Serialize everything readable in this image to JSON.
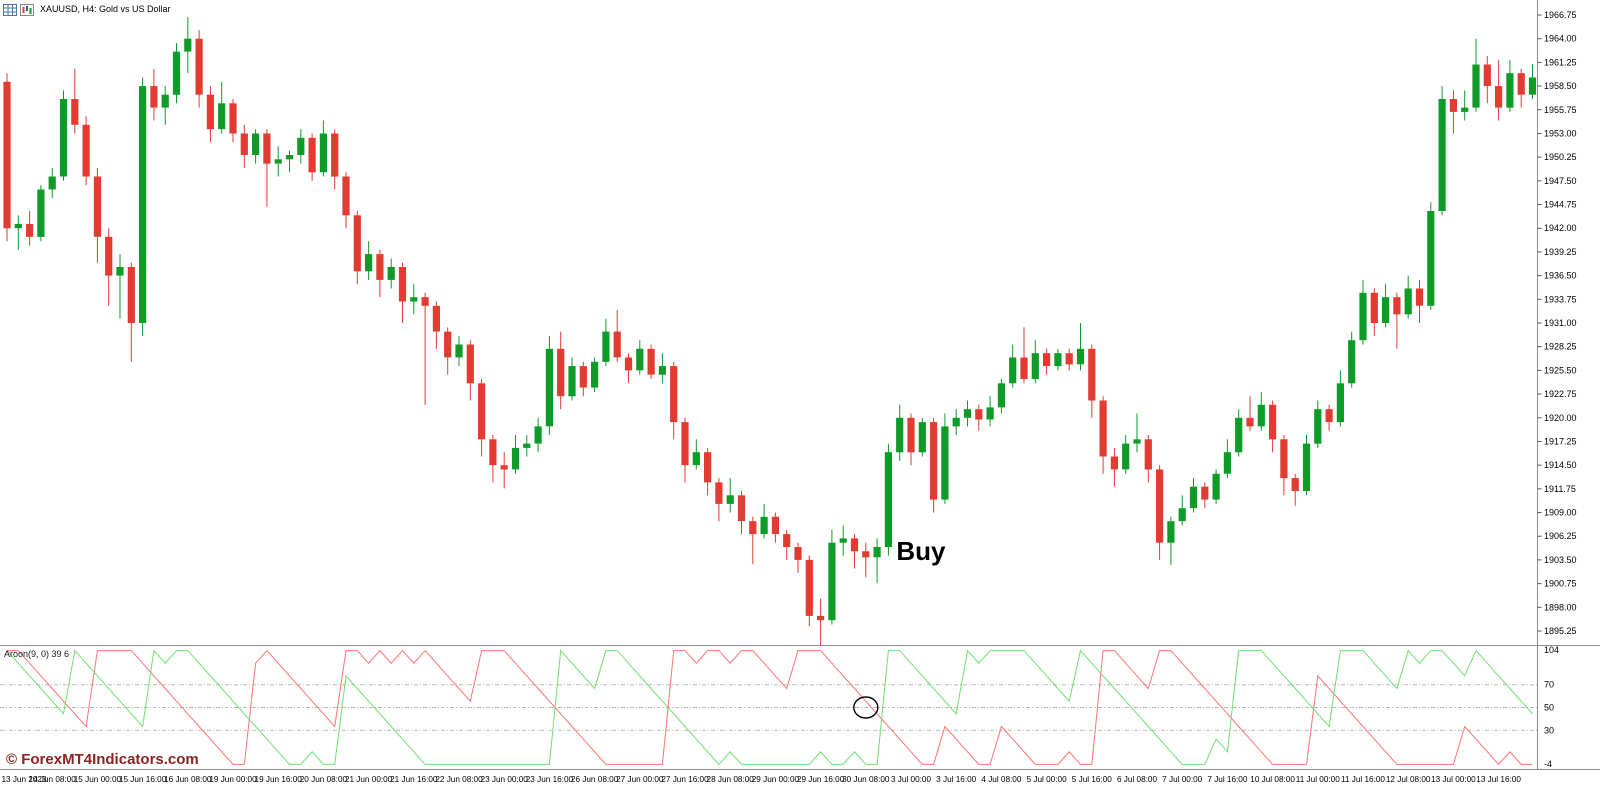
{
  "window": {
    "symbol_label": "XAUUSD, H4:  Gold vs US Dollar",
    "icons": [
      "grid-chart-icon",
      "candlestick-chart-icon"
    ]
  },
  "watermark": "© ForexMT4Indicators.com",
  "annotations": {
    "buy": {
      "text": "Buy",
      "bar_index": 78,
      "price": 1903.0
    },
    "circle": {
      "bar_index": 76,
      "value": 50
    }
  },
  "colors": {
    "bull": "#0e9b27",
    "bear": "#e23b32",
    "aroon_up": "#6ee06e",
    "aroon_down": "#ff7272",
    "level_line": "#b8b8b8",
    "separator": "#8c8c8c",
    "axis_text": "#000000",
    "background": "#ffffff"
  },
  "chart_data": {
    "type": "candlestick",
    "title": "XAUUSD, H4: Gold vs US Dollar",
    "price_axis": {
      "ticks": [
        1966.75,
        1964.0,
        1961.25,
        1958.5,
        1955.75,
        1953.0,
        1950.25,
        1947.5,
        1944.75,
        1942.0,
        1939.25,
        1936.5,
        1933.75,
        1931.0,
        1928.25,
        1925.5,
        1922.75,
        1920.0,
        1917.25,
        1914.5,
        1911.75,
        1909.0,
        1906.25,
        1903.5,
        1900.75,
        1898.0,
        1895.25
      ],
      "max": 1966.75,
      "min": 1895.25,
      "step": 2.75
    },
    "time_labels": [
      "13 Jun 2023",
      "14 Jun 08:00",
      "15 Jun 00:00",
      "15 Jun 16:00",
      "16 Jun 08:00",
      "19 Jun 00:00",
      "19 Jun 16:00",
      "20 Jun 08:00",
      "21 Jun 00:00",
      "21 Jun 16:00",
      "22 Jun 08:00",
      "23 Jun 00:00",
      "23 Jun 16:00",
      "26 Jun 08:00",
      "27 Jun 00:00",
      "27 Jun 16:00",
      "28 Jun 08:00",
      "29 Jun 00:00",
      "29 Jun 16:00",
      "30 Jun 08:00",
      "3 Jul 00:00",
      "3 Jul 16:00",
      "4 Jul 08:00",
      "5 Jul 00:00",
      "5 Jul 16:00",
      "6 Jul 08:00",
      "7 Jul 00:00",
      "7 Jul 16:00",
      "10 Jul 08:00",
      "11 Jul 00:00",
      "11 Jul 16:00",
      "12 Jul 08:00",
      "13 Jul 00:00",
      "13 Jul 16:00"
    ],
    "label_every_n_bars": 4,
    "candles_ohlc": [
      [
        1959.0,
        1960.0,
        1940.5,
        1942.0
      ],
      [
        1942.0,
        1943.5,
        1939.5,
        1942.5
      ],
      [
        1942.5,
        1944.0,
        1940.0,
        1941.0
      ],
      [
        1941.0,
        1947.0,
        1940.5,
        1946.5
      ],
      [
        1946.5,
        1949.0,
        1945.5,
        1948.0
      ],
      [
        1948.0,
        1958.0,
        1947.5,
        1957.0
      ],
      [
        1957.0,
        1960.5,
        1953.0,
        1954.0
      ],
      [
        1954.0,
        1955.0,
        1947.0,
        1948.0
      ],
      [
        1948.0,
        1949.0,
        1938.0,
        1941.0
      ],
      [
        1941.0,
        1942.0,
        1933.0,
        1936.5
      ],
      [
        1936.5,
        1939.0,
        1931.5,
        1937.5
      ],
      [
        1937.5,
        1938.0,
        1926.5,
        1931.0
      ],
      [
        1931.0,
        1959.5,
        1929.5,
        1958.5
      ],
      [
        1958.5,
        1960.5,
        1954.5,
        1956.0
      ],
      [
        1956.0,
        1958.5,
        1954.0,
        1957.5
      ],
      [
        1957.5,
        1963.5,
        1956.5,
        1962.5
      ],
      [
        1962.5,
        1966.5,
        1960.0,
        1964.0
      ],
      [
        1964.0,
        1965.0,
        1956.0,
        1957.5
      ],
      [
        1957.5,
        1958.5,
        1952.0,
        1953.5
      ],
      [
        1953.5,
        1959.0,
        1953.0,
        1956.5
      ],
      [
        1956.5,
        1957.0,
        1952.0,
        1953.0
      ],
      [
        1953.0,
        1954.0,
        1949.0,
        1950.5
      ],
      [
        1950.5,
        1953.5,
        1949.5,
        1953.0
      ],
      [
        1953.0,
        1953.5,
        1944.5,
        1949.5
      ],
      [
        1949.5,
        1951.5,
        1948.0,
        1950.0
      ],
      [
        1950.0,
        1951.0,
        1948.5,
        1950.5
      ],
      [
        1950.5,
        1953.5,
        1949.5,
        1952.5
      ],
      [
        1952.5,
        1953.0,
        1947.5,
        1948.5
      ],
      [
        1948.5,
        1954.5,
        1948.0,
        1953.0
      ],
      [
        1953.0,
        1953.5,
        1946.5,
        1948.0
      ],
      [
        1948.0,
        1948.5,
        1942.0,
        1943.5
      ],
      [
        1943.5,
        1944.0,
        1935.5,
        1937.0
      ],
      [
        1937.0,
        1940.5,
        1936.0,
        1939.0
      ],
      [
        1939.0,
        1939.5,
        1934.0,
        1936.0
      ],
      [
        1936.0,
        1938.5,
        1935.0,
        1937.5
      ],
      [
        1937.5,
        1938.0,
        1931.0,
        1933.5
      ],
      [
        1933.5,
        1935.5,
        1932.0,
        1934.0
      ],
      [
        1934.0,
        1934.5,
        1921.5,
        1933.0
      ],
      [
        1933.0,
        1933.5,
        1928.0,
        1930.0
      ],
      [
        1930.0,
        1930.5,
        1925.0,
        1927.0
      ],
      [
        1927.0,
        1929.5,
        1926.0,
        1928.5
      ],
      [
        1928.5,
        1929.0,
        1922.0,
        1924.0
      ],
      [
        1924.0,
        1924.5,
        1915.5,
        1917.5
      ],
      [
        1917.5,
        1918.0,
        1912.5,
        1914.5
      ],
      [
        1914.5,
        1916.0,
        1911.8,
        1914.0
      ],
      [
        1914.0,
        1918.0,
        1913.5,
        1916.5
      ],
      [
        1916.5,
        1918.0,
        1915.5,
        1917.0
      ],
      [
        1917.0,
        1920.0,
        1916.0,
        1919.0
      ],
      [
        1919.0,
        1929.5,
        1918.0,
        1928.0
      ],
      [
        1928.0,
        1930.0,
        1921.0,
        1922.5
      ],
      [
        1922.5,
        1927.0,
        1922.0,
        1926.0
      ],
      [
        1926.0,
        1926.5,
        1922.5,
        1923.5
      ],
      [
        1923.5,
        1927.0,
        1923.0,
        1926.5
      ],
      [
        1926.5,
        1931.5,
        1926.0,
        1930.0
      ],
      [
        1930.0,
        1932.5,
        1926.5,
        1927.0
      ],
      [
        1927.0,
        1927.5,
        1924.0,
        1925.5
      ],
      [
        1925.5,
        1929.0,
        1925.0,
        1928.0
      ],
      [
        1928.0,
        1928.5,
        1924.5,
        1925.0
      ],
      [
        1925.0,
        1927.5,
        1924.0,
        1926.0
      ],
      [
        1926.0,
        1926.5,
        1917.5,
        1919.5
      ],
      [
        1919.5,
        1920.0,
        1912.5,
        1914.5
      ],
      [
        1914.5,
        1917.5,
        1914.0,
        1916.0
      ],
      [
        1916.0,
        1916.5,
        1911.0,
        1912.5
      ],
      [
        1912.5,
        1913.0,
        1908.0,
        1910.0
      ],
      [
        1910.0,
        1913.0,
        1909.0,
        1911.0
      ],
      [
        1911.0,
        1911.5,
        1906.5,
        1908.0
      ],
      [
        1908.0,
        1908.5,
        1903.0,
        1906.5
      ],
      [
        1906.5,
        1910.0,
        1906.0,
        1908.5
      ],
      [
        1908.5,
        1909.0,
        1905.5,
        1906.5
      ],
      [
        1906.5,
        1907.0,
        1903.5,
        1905.0
      ],
      [
        1905.0,
        1905.5,
        1902.0,
        1903.5
      ],
      [
        1903.5,
        1904.0,
        1895.8,
        1897.0
      ],
      [
        1897.0,
        1899.0,
        1893.6,
        1896.5
      ],
      [
        1896.5,
        1907.0,
        1896.0,
        1905.5
      ],
      [
        1905.5,
        1907.5,
        1904.0,
        1906.0
      ],
      [
        1906.0,
        1906.5,
        1902.5,
        1904.5
      ],
      [
        1904.5,
        1905.5,
        1901.5,
        1903.8
      ],
      [
        1903.8,
        1906.0,
        1900.8,
        1905.0
      ],
      [
        1905.0,
        1917.0,
        1904.0,
        1916.0
      ],
      [
        1916.0,
        1921.5,
        1915.0,
        1920.0
      ],
      [
        1920.0,
        1920.5,
        1914.5,
        1916.0
      ],
      [
        1916.0,
        1920.0,
        1915.5,
        1919.5
      ],
      [
        1919.5,
        1920.0,
        1909.0,
        1910.5
      ],
      [
        1910.5,
        1920.5,
        1910.0,
        1919.0
      ],
      [
        1919.0,
        1921.0,
        1918.0,
        1920.0
      ],
      [
        1920.0,
        1922.0,
        1919.0,
        1921.0
      ],
      [
        1921.0,
        1921.5,
        1918.5,
        1919.8
      ],
      [
        1919.8,
        1922.5,
        1919.0,
        1921.2
      ],
      [
        1921.2,
        1924.5,
        1920.5,
        1924.0
      ],
      [
        1924.0,
        1928.5,
        1923.5,
        1927.0
      ],
      [
        1927.0,
        1930.5,
        1924.0,
        1924.5
      ],
      [
        1924.5,
        1929.0,
        1924.0,
        1927.5
      ],
      [
        1927.5,
        1928.0,
        1925.0,
        1926.0
      ],
      [
        1926.0,
        1928.0,
        1925.5,
        1927.5
      ],
      [
        1927.5,
        1928.0,
        1925.5,
        1926.2
      ],
      [
        1926.2,
        1931.0,
        1925.5,
        1928.0
      ],
      [
        1928.0,
        1928.5,
        1920.0,
        1922.0
      ],
      [
        1922.0,
        1922.5,
        1913.5,
        1915.5
      ],
      [
        1915.5,
        1916.5,
        1912.0,
        1914.0
      ],
      [
        1914.0,
        1918.0,
        1913.5,
        1917.0
      ],
      [
        1917.0,
        1920.5,
        1916.0,
        1917.5
      ],
      [
        1917.5,
        1918.0,
        1912.5,
        1914.0
      ],
      [
        1914.0,
        1914.5,
        1903.5,
        1905.5
      ],
      [
        1905.5,
        1908.5,
        1902.9,
        1908.0
      ],
      [
        1908.0,
        1911.0,
        1907.5,
        1909.5
      ],
      [
        1909.5,
        1913.0,
        1909.0,
        1912.0
      ],
      [
        1912.0,
        1912.5,
        1909.5,
        1910.5
      ],
      [
        1910.5,
        1914.0,
        1910.0,
        1913.5
      ],
      [
        1913.5,
        1917.5,
        1913.0,
        1916.0
      ],
      [
        1916.0,
        1921.0,
        1915.5,
        1920.0
      ],
      [
        1920.0,
        1922.5,
        1918.5,
        1919.0
      ],
      [
        1919.0,
        1923.0,
        1918.5,
        1921.5
      ],
      [
        1921.5,
        1922.0,
        1916.0,
        1917.5
      ],
      [
        1917.5,
        1918.0,
        1911.0,
        1913.0
      ],
      [
        1913.0,
        1913.5,
        1909.8,
        1911.5
      ],
      [
        1911.5,
        1918.0,
        1911.0,
        1917.0
      ],
      [
        1917.0,
        1922.0,
        1916.5,
        1921.0
      ],
      [
        1921.0,
        1921.5,
        1918.5,
        1919.5
      ],
      [
        1919.5,
        1925.5,
        1919.0,
        1924.0
      ],
      [
        1924.0,
        1930.0,
        1923.5,
        1929.0
      ],
      [
        1929.0,
        1936.0,
        1928.5,
        1934.5
      ],
      [
        1934.5,
        1935.0,
        1929.5,
        1931.0
      ],
      [
        1931.0,
        1935.5,
        1930.5,
        1934.0
      ],
      [
        1934.0,
        1934.5,
        1928.0,
        1932.0
      ],
      [
        1932.0,
        1936.5,
        1931.5,
        1935.0
      ],
      [
        1935.0,
        1936.0,
        1931.0,
        1933.0
      ],
      [
        1933.0,
        1945.0,
        1932.5,
        1944.0
      ],
      [
        1944.0,
        1958.5,
        1943.5,
        1957.0
      ],
      [
        1957.0,
        1958.0,
        1953.0,
        1955.5
      ],
      [
        1955.5,
        1958.0,
        1954.5,
        1956.0
      ],
      [
        1956.0,
        1964.0,
        1955.5,
        1961.0
      ],
      [
        1961.0,
        1962.0,
        1956.5,
        1958.5
      ],
      [
        1958.5,
        1961.5,
        1954.5,
        1956.0
      ],
      [
        1956.0,
        1961.5,
        1955.5,
        1960.0
      ],
      [
        1960.0,
        1960.5,
        1956.0,
        1957.5
      ],
      [
        1957.5,
        1961.0,
        1957.0,
        1959.5
      ]
    ],
    "indicator": {
      "type": "line",
      "name": "Aroon",
      "label": "Aroon(9, 0) 39 6",
      "period": 9,
      "levels": [
        70,
        50,
        30
      ],
      "scale_ticks": [
        104,
        70,
        50,
        30,
        -4
      ],
      "range": [
        -4,
        104
      ],
      "series": [
        {
          "name": "Aroon Up",
          "color_key": "aroon_up"
        },
        {
          "name": "Aroon Down",
          "color_key": "aroon_down"
        }
      ]
    }
  }
}
